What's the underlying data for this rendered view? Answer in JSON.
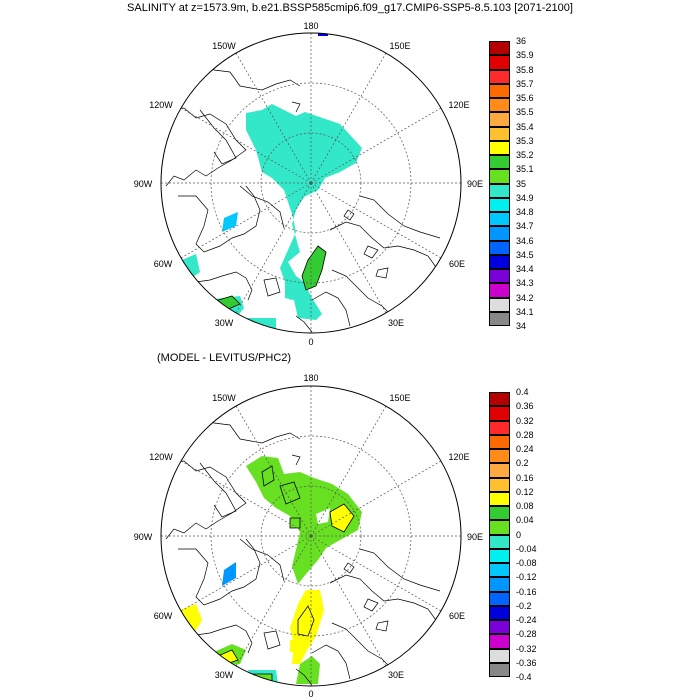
{
  "title": "SALINITY at z=1573.9m, b.e21.BSSP585cmip6.f09_g17.CMIP6-SSP5-8.5.103 [2071-2100]",
  "subtitle": "(MODEL - LEVITUS/PHC2)",
  "longitude_labels": {
    "lon_180": "180",
    "lon_150W": "150W",
    "lon_150E": "150E",
    "lon_120W": "120W",
    "lon_120E": "120E",
    "lon_90W": "90W",
    "lon_90E": "90E",
    "lon_60W": "60W",
    "lon_60E": "60E",
    "lon_30W": "30W",
    "lon_30E": "30E",
    "lon_0": "0"
  },
  "colorbar_top": {
    "labels": [
      "36",
      "35.9",
      "35.8",
      "35.7",
      "35.6",
      "35.5",
      "35.4",
      "35.3",
      "35.2",
      "35.1",
      "35",
      "34.9",
      "34.8",
      "34.7",
      "34.6",
      "34.5",
      "34.4",
      "34.3",
      "34.2",
      "34.1",
      "34"
    ],
    "colors": [
      "#b40000",
      "#e00000",
      "#ff2a2a",
      "#ff6a00",
      "#ff8c1a",
      "#ffaa40",
      "#ffc030",
      "#ffff00",
      "#33cc33",
      "#66e020",
      "#33e8c8",
      "#00f0f0",
      "#00c8ff",
      "#0096ff",
      "#0064ff",
      "#0000dd",
      "#7a00d8",
      "#cc00cc",
      "#dddddd",
      "#888888"
    ]
  },
  "colorbar_bottom": {
    "labels": [
      "0.4",
      "0.36",
      "0.32",
      "0.28",
      "0.24",
      "0.2",
      "0.16",
      "0.12",
      "0.08",
      "0.04",
      "0",
      "-0.04",
      "-0.08",
      "-0.12",
      "-0.16",
      "-0.2",
      "-0.24",
      "-0.28",
      "-0.32",
      "-0.36",
      "-0.4"
    ],
    "colors": [
      "#b40000",
      "#e00000",
      "#ff2a2a",
      "#ff6a00",
      "#ff8c1a",
      "#ffaa40",
      "#ffc030",
      "#ffff00",
      "#33cc33",
      "#66e020",
      "#33e8c8",
      "#00f0f0",
      "#00c8ff",
      "#0096ff",
      "#0064ff",
      "#0000dd",
      "#7a00d8",
      "#cc00cc",
      "#dddddd",
      "#888888"
    ]
  }
}
